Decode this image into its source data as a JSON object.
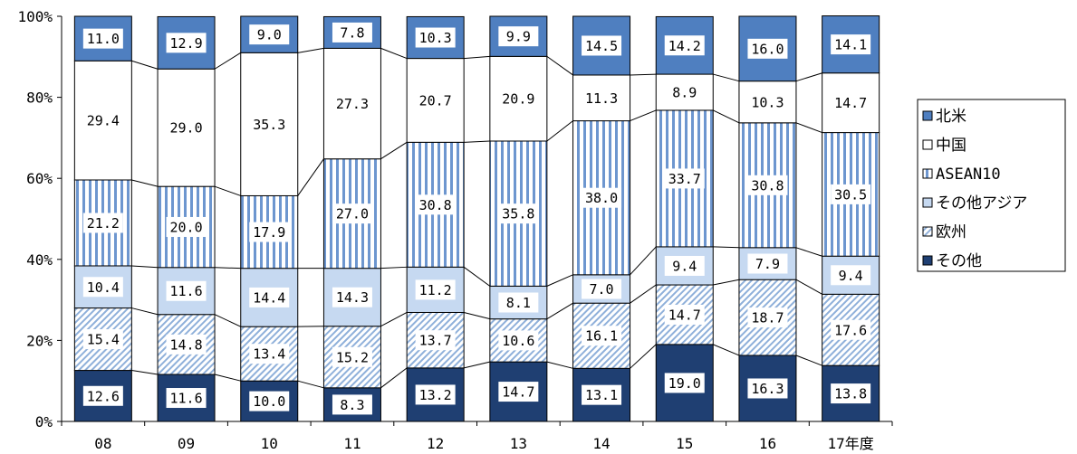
{
  "chart_data": {
    "type": "bar",
    "stacked": true,
    "percent": true,
    "categories": [
      "08",
      "09",
      "10",
      "11",
      "12",
      "13",
      "14",
      "15",
      "16",
      "17年度"
    ],
    "series": [
      {
        "name": "その他",
        "color": "#1f3f72",
        "pattern": "solid-dark",
        "values": [
          12.6,
          11.6,
          10.0,
          8.3,
          13.2,
          14.7,
          13.1,
          19.0,
          16.3,
          13.8
        ]
      },
      {
        "name": "欧州",
        "color": "#8fb0da",
        "pattern": "diagonal-hatch",
        "values": [
          15.4,
          14.8,
          13.4,
          15.2,
          13.7,
          10.6,
          16.1,
          14.7,
          18.7,
          17.6
        ]
      },
      {
        "name": "その他アジア",
        "color": "#c6d9f1",
        "pattern": "solid-light",
        "values": [
          10.4,
          11.6,
          14.4,
          14.3,
          11.2,
          8.1,
          7.0,
          9.4,
          7.9,
          9.4
        ]
      },
      {
        "name": "ASEAN10",
        "color": "#6d96cf",
        "pattern": "vertical-stripes",
        "values": [
          21.2,
          20.0,
          17.9,
          27.0,
          30.8,
          35.8,
          38.0,
          33.7,
          30.8,
          30.5
        ]
      },
      {
        "name": "中国",
        "color": "#ffffff",
        "pattern": "solid-white",
        "values": [
          29.4,
          29.0,
          35.3,
          27.3,
          20.7,
          20.9,
          11.3,
          8.9,
          10.3,
          14.7
        ]
      },
      {
        "name": "北米",
        "color": "#4f7fc0",
        "pattern": "solid-medium",
        "values": [
          11.0,
          12.9,
          9.0,
          7.8,
          10.3,
          9.9,
          14.5,
          14.2,
          16.0,
          14.1
        ]
      }
    ],
    "y_ticks": [
      "0%",
      "20%",
      "40%",
      "60%",
      "80%",
      "100%"
    ],
    "ylim": [
      0,
      100
    ],
    "legend": {
      "placement": "right",
      "entries": [
        "北米",
        "中国",
        "ASEAN10",
        "その他アジア",
        "欧州",
        "その他"
      ]
    },
    "series_lines": true,
    "grid": false
  }
}
